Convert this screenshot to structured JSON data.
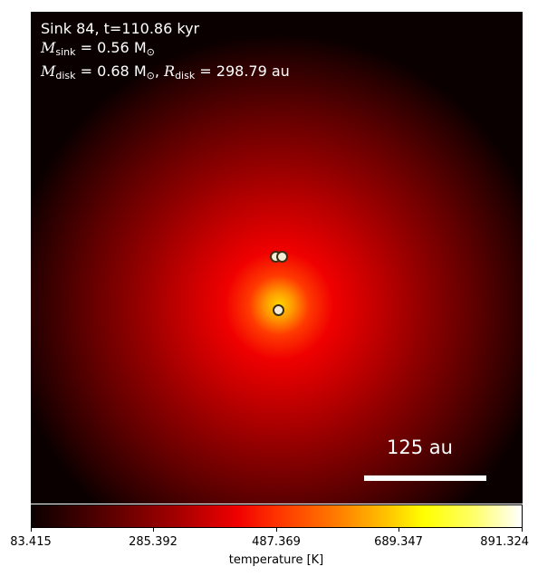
{
  "info": {
    "sink_line": "Sink 84, t=110.86 kyr",
    "msink_symbol": "M",
    "msink_sub": "sink",
    "msink_value": " = 0.56 M",
    "msink_unit_sub": "⊙",
    "mdisk_symbol": "M",
    "mdisk_sub": "disk",
    "mdisk_value": " = 0.68 M",
    "mdisk_unit_sub": "⊙",
    "rdisk_sep": ", ",
    "rdisk_symbol": "R",
    "rdisk_sub": "disk",
    "rdisk_value": " = 298.79 au"
  },
  "scalebar": {
    "label": "125 au"
  },
  "colorbar": {
    "ticks": [
      "83.415",
      "285.392",
      "487.369",
      "689.347",
      "891.324"
    ],
    "label": "temperature [K]",
    "colormap": "hot"
  },
  "sinks": [
    {
      "name": "sink-particle"
    },
    {
      "name": "sink-particle"
    },
    {
      "name": "sink-particle"
    }
  ]
}
